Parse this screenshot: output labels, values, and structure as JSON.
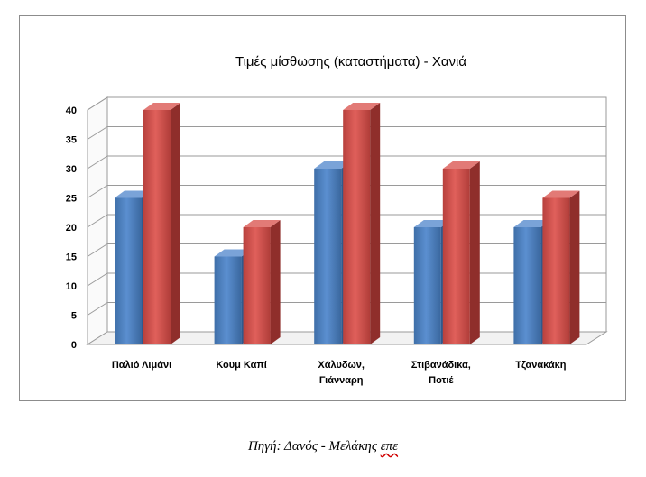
{
  "chart_data": {
    "type": "bar",
    "title": "Τιμές μίσθωσης (καταστήματα) - Χανιά",
    "categories": [
      [
        "Παλιό Λιμάνι"
      ],
      [
        "Κουμ Καπί"
      ],
      [
        "Χάλυδων,",
        "Γιάνναρη"
      ],
      [
        "Στιβανάδικα,",
        "Ποτιέ"
      ],
      [
        "Τζανακάκη"
      ]
    ],
    "series": [
      {
        "color": "#4f81bd",
        "values": [
          25,
          15,
          30,
          20,
          20
        ]
      },
      {
        "color": "#c0504d",
        "values": [
          40,
          20,
          40,
          30,
          25
        ]
      }
    ],
    "ylim": [
      0,
      40
    ],
    "yticks": [
      0,
      5,
      10,
      15,
      20,
      25,
      30,
      35,
      40
    ],
    "grid": true,
    "legend": "none"
  },
  "source": {
    "prefix": "Πηγή: Δανός - Μελάκης ",
    "suffix": "επε"
  }
}
